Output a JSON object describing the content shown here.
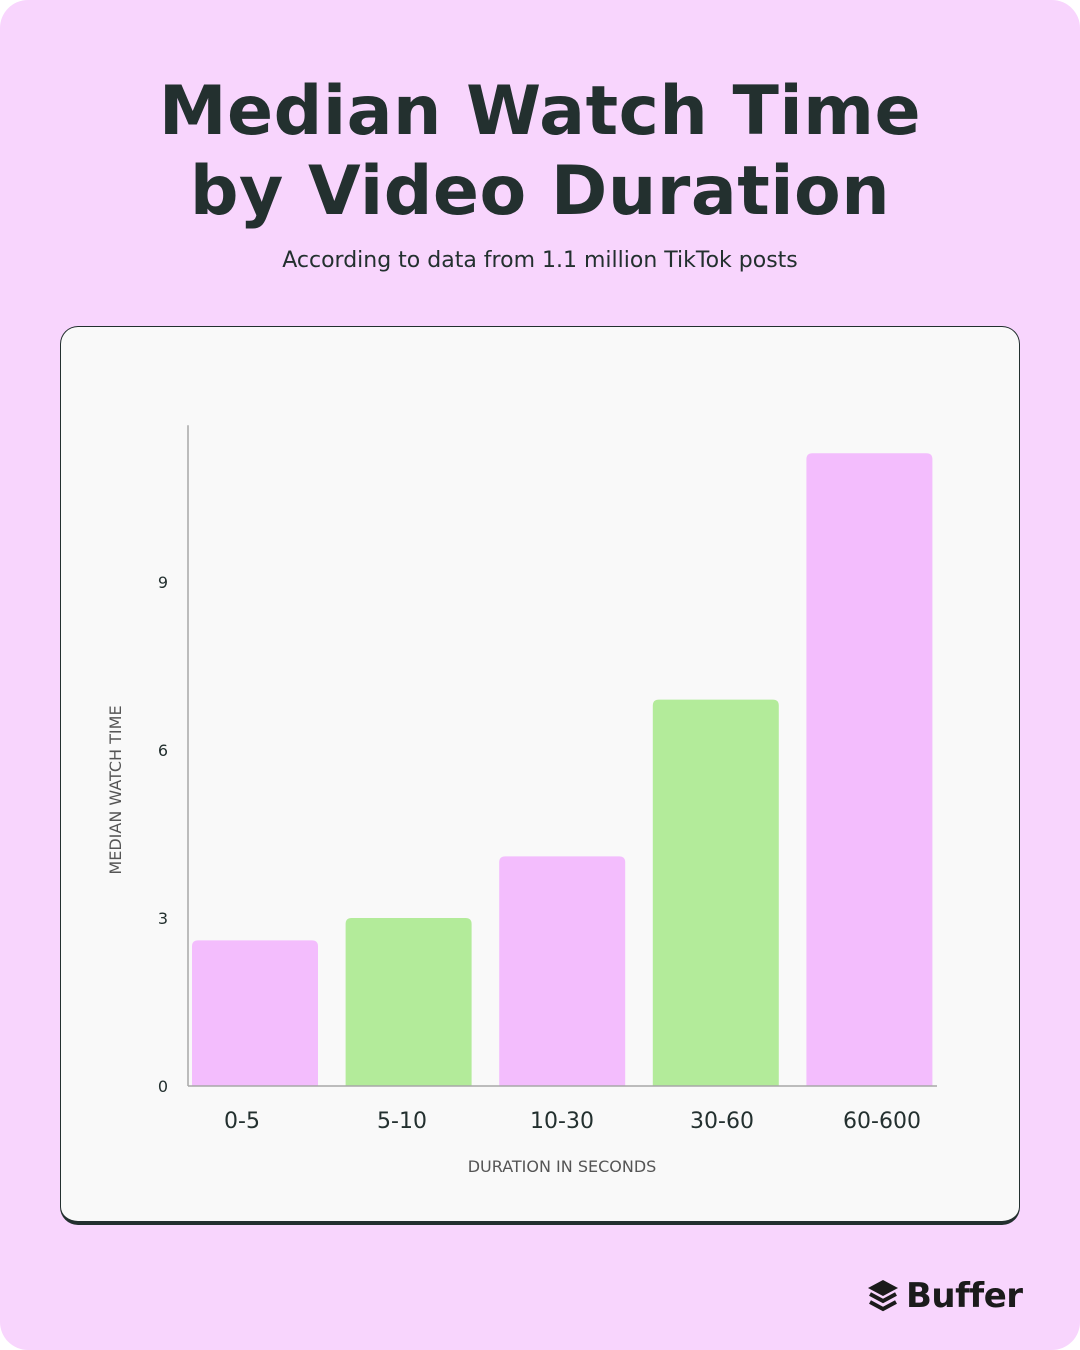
{
  "chart_data": {
    "type": "bar",
    "title": "Median Watch Time by Video Duration",
    "subtitle": "According to data from 1.1 million TikTok posts",
    "xlabel": "DURATION IN SECONDS",
    "ylabel": "MEDIAN WATCH TIME",
    "categories": [
      "0-5",
      "5-10",
      "10-30",
      "30-60",
      "60-600"
    ],
    "values": [
      2.6,
      3.0,
      4.1,
      6.9,
      11.3
    ],
    "colors": [
      "#f3bdfd",
      "#b3eb9a",
      "#f3bdfd",
      "#b3eb9a",
      "#f3bdfd"
    ],
    "yticks": [
      0,
      3,
      6,
      9
    ],
    "ylim": [
      0,
      11.8
    ],
    "grid": false,
    "legend": "none"
  },
  "title_lines": [
    "Median Watch Time",
    "by Video Duration"
  ],
  "brand": {
    "name": "Buffer",
    "icon": "buffer-layers-icon"
  }
}
